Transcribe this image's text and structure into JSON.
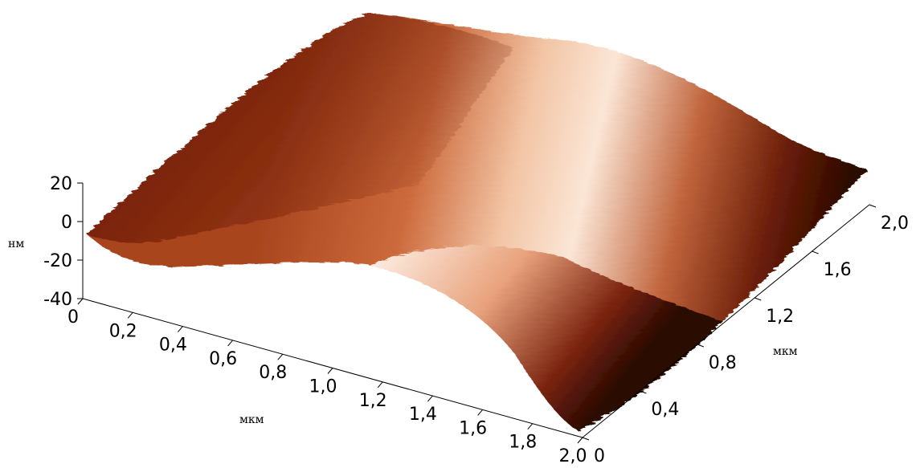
{
  "chart_data": {
    "type": "surface3d",
    "title": "",
    "colormap": [
      "#2b0a02",
      "#6e1c08",
      "#a63d1a",
      "#cf6a3f",
      "#e8a27c",
      "#fbe2cf",
      "#ffffff"
    ],
    "x_axis": {
      "unit": "мкм",
      "range": [
        0,
        2.0
      ],
      "ticks": [
        "0",
        "0,2",
        "0,4",
        "0,6",
        "0,8",
        "1,0",
        "1,2",
        "1,4",
        "1,6",
        "1,8",
        "2,0"
      ]
    },
    "y_axis": {
      "unit": "мкм",
      "range": [
        0,
        2.0
      ],
      "ticks": [
        "0",
        "0,4",
        "0,8",
        "1,2",
        "1,6",
        "2,0"
      ]
    },
    "z_axis": {
      "unit": "нм",
      "range": [
        -40,
        20
      ],
      "ticks": [
        "-40",
        "-20",
        "0",
        "20"
      ]
    },
    "surface": {
      "x": [
        0,
        0.4,
        0.8,
        1.2,
        1.6,
        2.0
      ],
      "y": [
        0,
        0.4,
        0.8,
        1.2,
        1.6,
        2.0
      ],
      "z": [
        [
          -2,
          -4,
          -5,
          -6,
          -5,
          -4
        ],
        [
          0,
          -2,
          -3,
          -4,
          -3,
          -2
        ],
        [
          2,
          3,
          2,
          0,
          -1,
          -2
        ],
        [
          4,
          8,
          12,
          6,
          2,
          0
        ],
        [
          -8,
          -2,
          6,
          10,
          6,
          2
        ],
        [
          -40,
          -30,
          -15,
          -2,
          5,
          2
        ]
      ]
    }
  }
}
